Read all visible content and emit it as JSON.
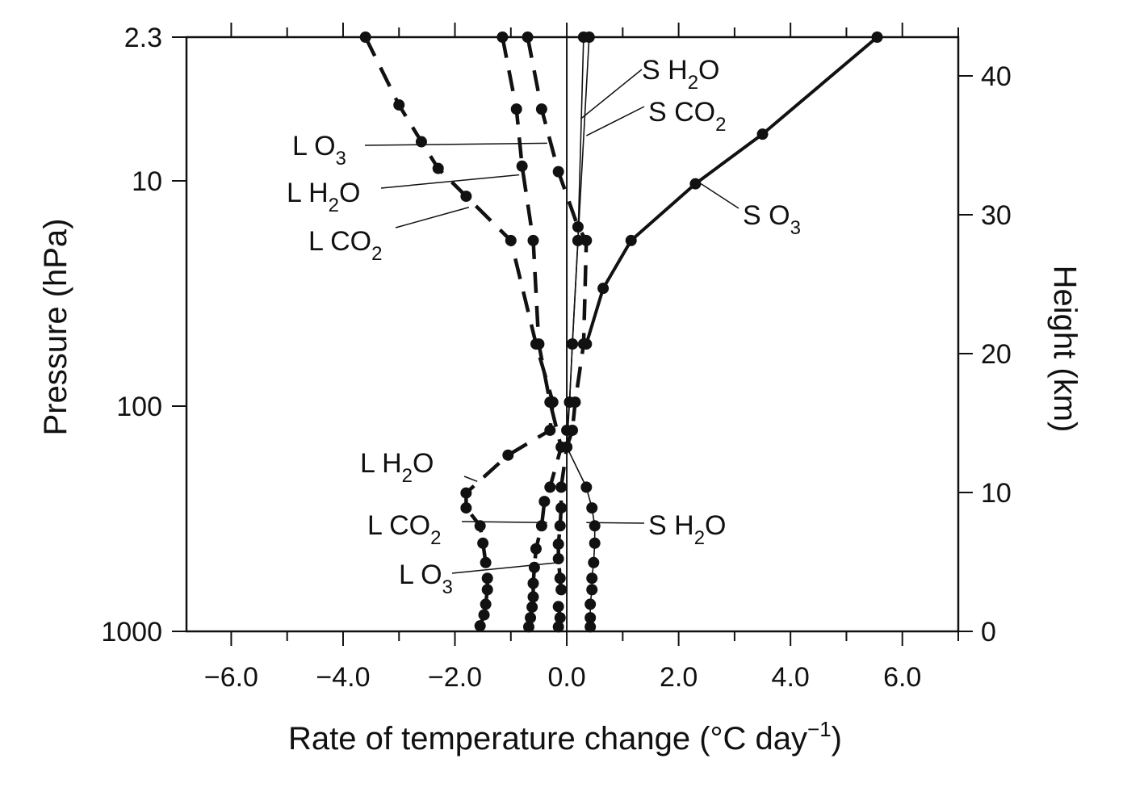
{
  "chart_data": {
    "type": "line",
    "xlabel": "Rate of temperature change  (°C day",
    "xlabel_sup": "−1",
    "xlabel_close": ")",
    "ylabel_left": "Pressure  (hPa)",
    "ylabel_right": "Height  (km)",
    "xlim": [
      -6.8,
      7.0
    ],
    "x_ticks": [
      -6.0,
      -4.0,
      -2.0,
      0.0,
      2.0,
      4.0,
      6.0
    ],
    "x_tick_labels": [
      "−6.0",
      "−4.0",
      "−2.0",
      "0.0",
      "2.0",
      "4.0",
      "6.0"
    ],
    "y_scale": "log",
    "y_inverted": true,
    "pressure_range_hpa": [
      2.3,
      1000
    ],
    "pressure_ticks": [
      {
        "value": 2.3,
        "label": "2.3"
      },
      {
        "value": 10,
        "label": "10"
      },
      {
        "value": 100,
        "label": "100"
      },
      {
        "value": 1000,
        "label": "1000"
      }
    ],
    "height_ticks_km": [
      {
        "value": 0,
        "label": "0"
      },
      {
        "value": 10,
        "label": "10"
      },
      {
        "value": 20,
        "label": "20"
      },
      {
        "value": 30,
        "label": "30"
      },
      {
        "value": 40,
        "label": "40"
      }
    ],
    "series": [
      {
        "name": "S O3",
        "style": "solid-thick",
        "points": [
          [
            5.55,
            2.3
          ],
          [
            3.5,
            6.2
          ],
          [
            2.3,
            10.3
          ],
          [
            1.15,
            18.4
          ],
          [
            0.65,
            30
          ],
          [
            0.35,
            53
          ]
        ]
      },
      {
        "name": "L O3",
        "style": "dashed",
        "points": [
          [
            -3.6,
            2.3
          ],
          [
            -3.0,
            4.6
          ],
          [
            -2.6,
            6.7
          ],
          [
            -2.3,
            8.8
          ],
          [
            -1.8,
            11.7
          ],
          [
            -1.0,
            18.4
          ],
          [
            -0.55,
            53
          ],
          [
            -0.25,
            96
          ],
          [
            -0.3,
            128
          ],
          [
            -1.05,
            165
          ],
          [
            -1.8,
            243
          ],
          [
            -1.8,
            283
          ],
          [
            -1.55,
            340
          ],
          [
            -1.5,
            406
          ],
          [
            -1.45,
            495
          ],
          [
            -1.42,
            581
          ],
          [
            -1.42,
            653
          ],
          [
            -1.45,
            758
          ],
          [
            -1.48,
            845
          ],
          [
            -1.55,
            945
          ]
        ]
      },
      {
        "name": "L H2O",
        "style": "dashed",
        "points": [
          [
            -1.15,
            2.3
          ],
          [
            -0.9,
            4.8
          ],
          [
            -0.8,
            8.6
          ],
          [
            -0.6,
            18.4
          ],
          [
            -0.5,
            53
          ],
          [
            -0.3,
            96
          ],
          [
            -0.1,
            152
          ],
          [
            -0.3,
            229
          ],
          [
            -0.4,
            265
          ],
          [
            -0.45,
            340
          ],
          [
            -0.55,
            430
          ],
          [
            -0.58,
            520
          ],
          [
            -0.6,
            612
          ],
          [
            -0.6,
            703
          ],
          [
            -0.62,
            780
          ],
          [
            -0.65,
            870
          ],
          [
            -0.68,
            955
          ]
        ]
      },
      {
        "name": "L CO2",
        "style": "dashed",
        "points": [
          [
            -0.7,
            2.3
          ],
          [
            -0.45,
            4.8
          ],
          [
            -0.15,
            9.1
          ],
          [
            0.2,
            16.0
          ],
          [
            0.35,
            18.4
          ],
          [
            0.3,
            53
          ],
          [
            0.15,
            96
          ],
          [
            0.1,
            128
          ],
          [
            0.0,
            152
          ],
          [
            -0.1,
            229
          ],
          [
            -0.1,
            283
          ],
          [
            -0.12,
            340
          ],
          [
            -0.15,
            410
          ],
          [
            -0.15,
            476
          ],
          [
            -0.12,
            581
          ],
          [
            -0.1,
            653
          ],
          [
            -0.15,
            776
          ],
          [
            -0.12,
            870
          ],
          [
            -0.15,
            955
          ]
        ]
      },
      {
        "name": "S H2O",
        "style": "thin",
        "points": [
          [
            0.3,
            2.3
          ],
          [
            0.2,
            18.4
          ],
          [
            0.1,
            53
          ],
          [
            0.05,
            96
          ],
          [
            0.0,
            152
          ],
          [
            0.35,
            229
          ],
          [
            0.45,
            283
          ],
          [
            0.5,
            340
          ],
          [
            0.5,
            406
          ],
          [
            0.48,
            495
          ],
          [
            0.45,
            581
          ],
          [
            0.45,
            653
          ],
          [
            0.42,
            758
          ],
          [
            0.42,
            870
          ],
          [
            0.42,
            955
          ]
        ]
      },
      {
        "name": "S CO2",
        "style": "thin",
        "points": [
          [
            0.4,
            2.3
          ],
          [
            0.2,
            18.4
          ],
          [
            0.1,
            53
          ],
          [
            0.05,
            96
          ],
          [
            0.0,
            128
          ]
        ]
      }
    ],
    "annotations": [
      {
        "label": "S H",
        "sub": "2",
        "tail": "O",
        "target": [
          0.25,
          5.3
        ]
      },
      {
        "label": "S CO",
        "sub": "2",
        "tail": "",
        "target": [
          0.35,
          6.3
        ]
      },
      {
        "label": "S O",
        "sub": "3",
        "tail": "",
        "target": [
          2.4,
          10.3
        ]
      },
      {
        "label": "L O",
        "sub": "3",
        "tail": "",
        "target": [
          -0.35,
          6.8
        ]
      },
      {
        "label": "L H",
        "sub": "2",
        "tail": "O",
        "target": [
          -0.85,
          9.4
        ]
      },
      {
        "label": "L CO",
        "sub": "2",
        "tail": "",
        "target": [
          -1.75,
          13.1
        ]
      },
      {
        "label": "L H",
        "sub": "2",
        "tail": "O",
        "target": [
          -1.6,
          216
        ]
      },
      {
        "label": "L CO",
        "sub": "2",
        "tail": "",
        "target": [
          -0.35,
          329
        ]
      },
      {
        "label": "S H",
        "sub": "2",
        "tail": "O",
        "target": [
          0.35,
          329
        ]
      },
      {
        "label": "L O",
        "sub": "3",
        "tail": "",
        "target": [
          -0.15,
          495
        ]
      }
    ]
  }
}
